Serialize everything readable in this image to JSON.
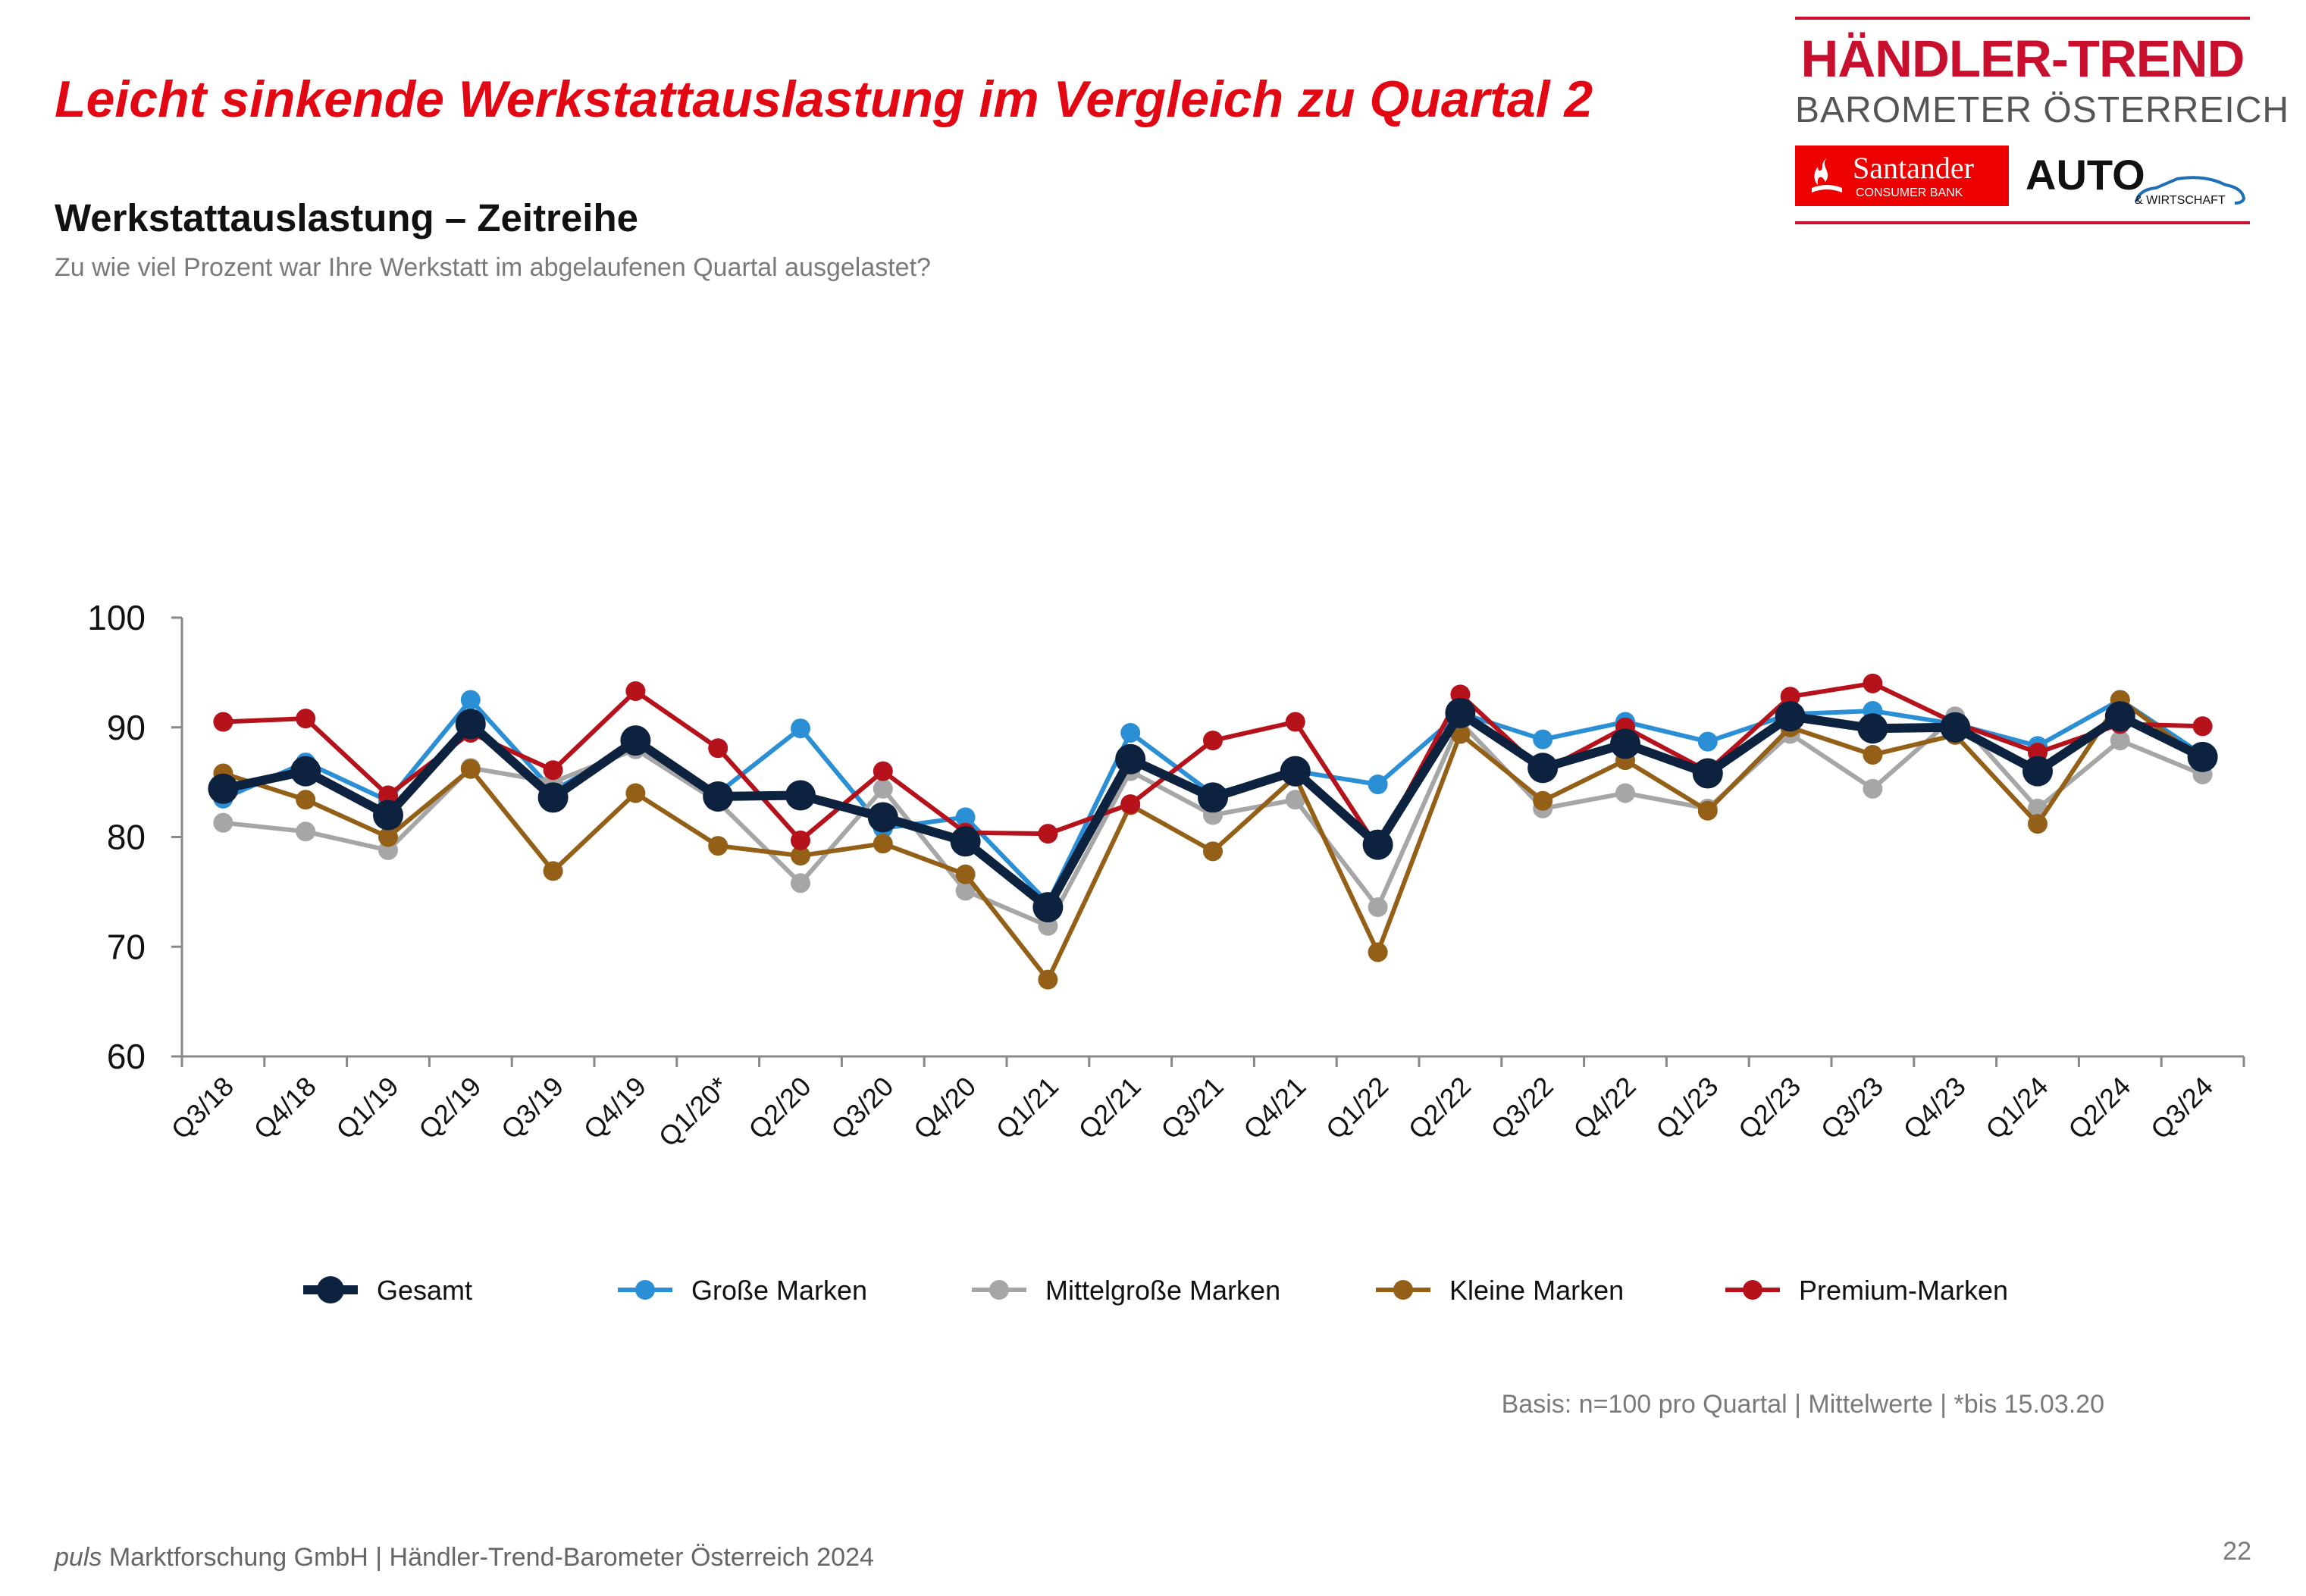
{
  "headline": "Leicht sinkende Werkstattauslastung im Vergleich zu Quartal 2",
  "subtitle": "Werkstattauslastung – Zeitreihe",
  "question": "Zu wie viel Prozent war Ihre Werkstatt im abgelaufenen Quartal ausgelastet?",
  "logo": {
    "brand": "HÄNDLER-TREND",
    "brand_sub": "BAROMETER ÖSTERREICH",
    "sponsor": "Santander",
    "sponsor_sub": "CONSUMER BANK",
    "partner": "AUTO",
    "partner_sub": "& WIRTSCHAFT",
    "brand_color": "#c8102e",
    "sponsor_color": "#ec0000"
  },
  "basis_note": "Basis: n=100 pro Quartal | Mittelwerte | *bis 15.03.20",
  "footer": {
    "brand": "puls",
    "text": " Marktforschung GmbH | Händler-Trend-Barometer Österreich 2024"
  },
  "page_number": "22",
  "chart_data": {
    "type": "line",
    "title": "",
    "xlabel": "",
    "ylabel": "",
    "ylim": [
      60,
      100
    ],
    "yticks": [
      60,
      70,
      80,
      90,
      100
    ],
    "grid": false,
    "legend_position": "bottom",
    "categories": [
      "Q3/18",
      "Q4/18",
      "Q1/19",
      "Q2/19",
      "Q3/19",
      "Q4/19",
      "Q1/20*",
      "Q2/20",
      "Q3/20",
      "Q4/20",
      "Q1/21",
      "Q2/21",
      "Q3/21",
      "Q4/21",
      "Q1/22",
      "Q2/22",
      "Q3/22",
      "Q4/22",
      "Q1/23",
      "Q2/23",
      "Q3/23",
      "Q4/23",
      "Q1/24",
      "Q2/24",
      "Q3/24"
    ],
    "series": [
      {
        "name": "Große Marken",
        "color": "#2b8fd6",
        "values": [
          83.5,
          86.8,
          83.3,
          92.5,
          84.2,
          88.5,
          84.0,
          89.9,
          80.8,
          81.8,
          74.0,
          89.5,
          83.9,
          86.0,
          84.8,
          91.3,
          88.9,
          90.5,
          88.7,
          91.2,
          91.5,
          90.3,
          88.3,
          92.5,
          87.5
        ]
      },
      {
        "name": "Mittelgroße Marken",
        "color": "#a6a6a6",
        "values": [
          81.3,
          80.5,
          78.8,
          86.3,
          85.0,
          88.0,
          83.2,
          75.8,
          84.4,
          75.1,
          71.9,
          86.0,
          82.0,
          83.4,
          73.6,
          90.5,
          82.6,
          84.0,
          82.6,
          89.4,
          84.4,
          91.0,
          82.6,
          88.8,
          85.7
        ]
      },
      {
        "name": "Kleine Marken",
        "color": "#946018",
        "values": [
          85.8,
          83.4,
          80.0,
          86.2,
          76.9,
          84.0,
          79.2,
          78.3,
          79.4,
          76.6,
          67.0,
          82.9,
          78.7,
          85.5,
          69.5,
          89.4,
          83.3,
          87.0,
          82.4,
          90.0,
          87.5,
          89.3,
          81.2,
          92.5,
          87.0
        ]
      },
      {
        "name": "Premium-Marken",
        "color": "#b5121b",
        "values": [
          90.5,
          90.8,
          83.8,
          89.5,
          86.1,
          93.3,
          88.1,
          79.7,
          86.0,
          80.4,
          80.3,
          83.0,
          88.8,
          90.5,
          79.0,
          93.0,
          86.0,
          90.0,
          86.0,
          92.8,
          94.0,
          90.4,
          87.7,
          90.3,
          90.1
        ]
      },
      {
        "name": "Gesamt",
        "color": "#0c223f",
        "values": [
          84.4,
          86.0,
          82.0,
          90.3,
          83.6,
          88.8,
          83.7,
          83.8,
          81.8,
          79.6,
          73.6,
          87.1,
          83.6,
          86.0,
          79.3,
          91.3,
          86.3,
          88.5,
          85.8,
          91.0,
          89.9,
          90.0,
          86.0,
          91.0,
          87.3
        ]
      }
    ],
    "legend_order": [
      "Gesamt",
      "Große Marken",
      "Mittelgroße Marken",
      "Kleine Marken",
      "Premium-Marken"
    ]
  }
}
